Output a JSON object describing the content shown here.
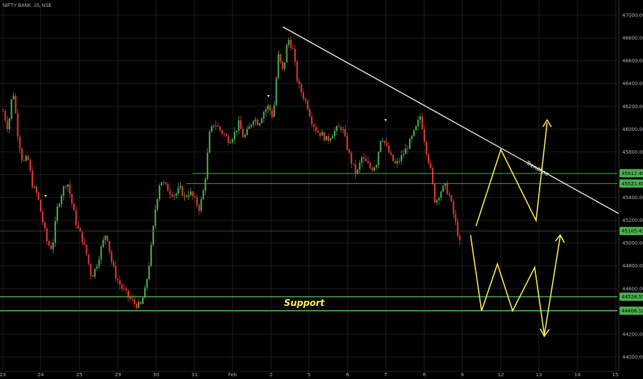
{
  "header": {
    "symbol": "NIFTY BANK, 15, NSE"
  },
  "chart_data": {
    "type": "candlestick",
    "y_axis": {
      "ylim": [
        43900,
        47100
      ],
      "ticks": [
        "47000.00",
        "46800.00",
        "46600.00",
        "46400.00",
        "46200.00",
        "46000.00",
        "45800.00",
        "45600.00",
        "45400.00",
        "45200.00",
        "45000.00",
        "44800.00",
        "44600.00",
        "44400.00",
        "44200.00",
        "44000.00"
      ]
    },
    "x_axis": {
      "ticks": [
        "23",
        "24",
        "25",
        "29",
        "30",
        "31",
        "Feb",
        "2",
        "5",
        "6",
        "7",
        "8",
        "9",
        "12",
        "13",
        "14",
        "15"
      ]
    },
    "levels": [
      {
        "label": "45612.40",
        "value": 45612.4,
        "color": "#4caf50"
      },
      {
        "label": "45521.60",
        "value": 45521.6,
        "color": "#4caf50"
      },
      {
        "label": "45105.45",
        "value": 45105.45,
        "color": "#4caf50"
      },
      {
        "label": "44528.55",
        "value": 44528.55,
        "color": "#4caf50"
      },
      {
        "label": "44406.10",
        "value": 44406.1,
        "color": "#4caf50"
      }
    ],
    "support_label": "Support",
    "trendline_label": "Trendline",
    "colors": {
      "up": "#26a69a",
      "up_green": "#4caf50",
      "down": "#e53935",
      "grid": "#1e1e1e",
      "projection": "#ffee58",
      "trendline": "#ffffff"
    },
    "price_path": [
      [
        46160,
        46000,
        46360,
        45950,
        45700,
        45750,
        45500,
        45420,
        45200,
        45000,
        44950,
        45300,
        45450,
        45550,
        45350,
        45150,
        45050,
        44900,
        44700,
        44800,
        44960,
        45100,
        44850,
        44700,
        44620,
        44560,
        44500,
        44460,
        44450,
        44600,
        44900,
        45300,
        45560,
        45500,
        45450,
        45420,
        45480,
        45400,
        45450,
        45380,
        45300,
        45500,
        45950,
        46060,
        46000,
        45950,
        45900,
        45950,
        46050,
        45920,
        46000,
        46100,
        46050,
        46150,
        46200,
        46100,
        46650,
        46500,
        46800,
        46700,
        46400,
        46300,
        46200,
        46050,
        45980,
        45950,
        45900,
        45960,
        46000,
        46020,
        45850,
        45700,
        45600,
        45750,
        45700,
        45650,
        45700,
        45950,
        45850,
        45750,
        45680,
        45750,
        45820,
        45900,
        46000,
        46120,
        45850,
        45650,
        45350,
        45450,
        45500,
        45400,
        45200,
        45000
      ]
    ]
  }
}
